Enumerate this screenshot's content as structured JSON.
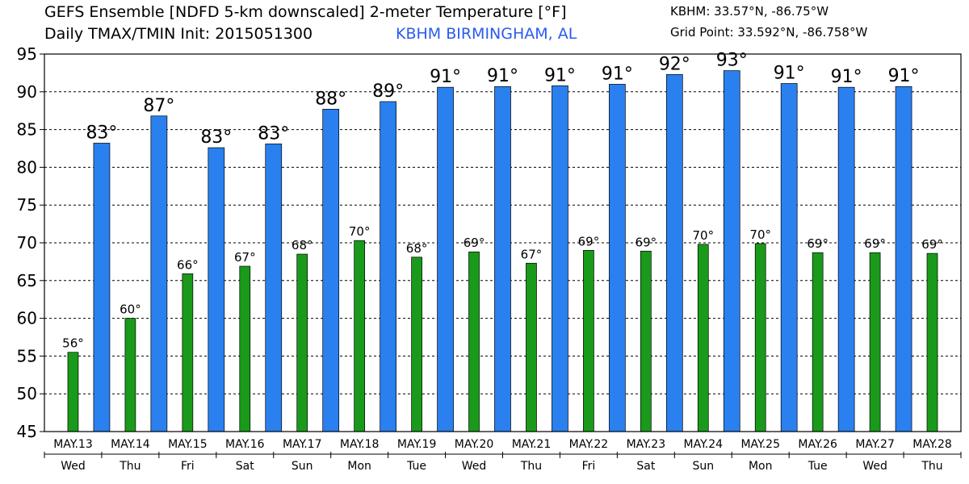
{
  "header": {
    "title_line1": "GEFS Ensemble [NDFD 5-km downscaled] 2-meter Temperature [°F]",
    "title_line2": "Daily TMAX/TMIN Init: 2015051300",
    "location": "KBHM BIRMINGHAM, AL",
    "station_coords": "KBHM: 33.57°N, -86.75°W",
    "grid_point": "Grid Point: 33.592°N, -86.758°W"
  },
  "colors": {
    "tmax": "#2a80ee",
    "tmin": "#1a9a1a",
    "location_text": "#2a5bf0",
    "grid": "#000000"
  },
  "chart_data": {
    "type": "bar",
    "ylim": [
      45,
      95
    ],
    "yticks": [
      45,
      50,
      55,
      60,
      65,
      70,
      75,
      80,
      85,
      90,
      95
    ],
    "grid": true,
    "tmin_label_first": true,
    "dates": [
      "MAY.13",
      "MAY.14",
      "MAY.15",
      "MAY.16",
      "MAY.17",
      "MAY.18",
      "MAY.19",
      "MAY.20",
      "MAY.21",
      "MAY.22",
      "MAY.23",
      "MAY.24",
      "MAY.25",
      "MAY.26",
      "MAY.27",
      "MAY.28"
    ],
    "days": [
      "Wed",
      "Thu",
      "Fri",
      "Sat",
      "Sun",
      "Mon",
      "Tue",
      "Wed",
      "Thu",
      "Fri",
      "Sat",
      "Sun",
      "Mon",
      "Tue",
      "Wed",
      "Thu"
    ],
    "tmin": {
      "values": [
        55.5,
        60,
        65.9,
        66.9,
        68.5,
        70.3,
        68.1,
        68.8,
        67.3,
        69,
        68.9,
        69.8,
        69.9,
        68.7,
        68.7,
        68.6
      ],
      "labels": [
        "56°",
        "60°",
        "66°",
        "67°",
        "68°",
        "70°",
        "68°",
        "69°",
        "67°",
        "69°",
        "69°",
        "70°",
        "70°",
        "69°",
        "69°",
        "69°"
      ]
    },
    "tmax": {
      "values": [
        83.2,
        86.8,
        82.6,
        83.1,
        87.7,
        88.7,
        90.6,
        90.7,
        90.8,
        91.0,
        92.3,
        92.8,
        91.1,
        90.6,
        90.7
      ],
      "labels": [
        "83°",
        "87°",
        "83°",
        "83°",
        "88°",
        "89°",
        "91°",
        "91°",
        "91°",
        "91°",
        "92°",
        "93°",
        "91°",
        "91°",
        "91°"
      ]
    }
  }
}
